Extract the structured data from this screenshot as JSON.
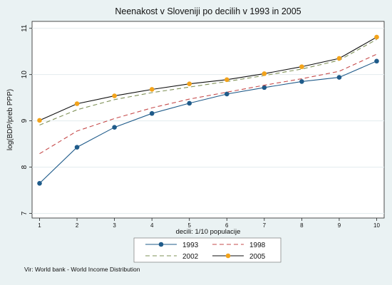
{
  "chart_data": {
    "type": "line",
    "title": "Neenakost v Sloveniji po decilih v 1993 in 2005",
    "xlabel": "decili: 1/10 populacije",
    "ylabel": "log(BDP/preb PPP)",
    "x": [
      1,
      2,
      3,
      4,
      5,
      6,
      7,
      8,
      9,
      10
    ],
    "xlim": [
      0.8,
      10.2
    ],
    "ylim": [
      6.9,
      11.15
    ],
    "xticks": [
      "1",
      "2",
      "3",
      "4",
      "5",
      "6",
      "7",
      "8",
      "9",
      "10"
    ],
    "yticks": [
      "7",
      "8",
      "9",
      "10",
      "11"
    ],
    "grid": "horizontal",
    "legend_position": "bottom",
    "series": [
      {
        "name": "1993",
        "color": "#1f5b8a",
        "style": "solid-markers",
        "values": [
          7.65,
          8.43,
          8.86,
          9.16,
          9.38,
          9.58,
          9.72,
          9.85,
          9.94,
          10.29
        ]
      },
      {
        "name": "1998",
        "color": "#c64b4b",
        "style": "dash",
        "values": [
          8.29,
          8.78,
          9.05,
          9.28,
          9.47,
          9.62,
          9.77,
          9.91,
          10.07,
          10.44
        ]
      },
      {
        "name": "2002",
        "color": "#7f9157",
        "style": "dash",
        "values": [
          8.91,
          9.24,
          9.46,
          9.61,
          9.73,
          9.85,
          9.98,
          10.12,
          10.31,
          10.76
        ]
      },
      {
        "name": "2005",
        "color": "#111111",
        "style": "solid-markers",
        "marker_color": "#f2a31b",
        "values": [
          9.01,
          9.37,
          9.54,
          9.68,
          9.8,
          9.89,
          10.02,
          10.17,
          10.35,
          10.81
        ]
      }
    ]
  },
  "source": "Vir: World bank - World Income Distribution"
}
